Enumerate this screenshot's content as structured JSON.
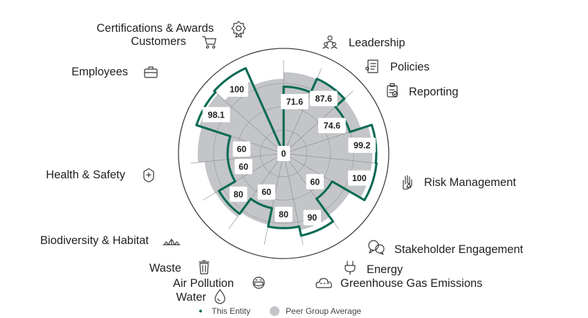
{
  "chart_data": {
    "type": "radar",
    "categories": [
      "Leadership",
      "Policies",
      "Reporting",
      "Risk Management",
      "Stakeholder Engagement",
      "Energy",
      "Greenhouse Gas Emissions",
      "Water",
      "Air Pollution",
      "Waste",
      "Biodiversity & Habitat",
      "Health & Safety",
      "Employees",
      "Customers",
      "Certifications & Awards"
    ],
    "value_labels": [
      "71.6",
      "87.6",
      "74.6",
      "99.2",
      "100",
      "60",
      "90",
      "80",
      "60",
      "80",
      "60",
      "60",
      "98.1",
      "100",
      "0"
    ],
    "series": [
      {
        "name": "This Entity",
        "values": [
          71.6,
          87.6,
          74.6,
          99.2,
          100,
          60,
          90,
          80,
          60,
          80,
          60,
          60,
          98.1,
          100,
          0
        ],
        "color": "#0b6b55"
      },
      {
        "name": "Peer Group Average",
        "values": [
          87,
          87,
          87,
          95,
          95,
          82,
          84,
          80,
          78,
          84,
          85,
          92,
          95,
          85,
          80
        ],
        "color": "#c3c5c8"
      }
    ],
    "rlim": [
      0,
      100
    ],
    "grid": true,
    "legend_position": "bottom",
    "icons": [
      "leadership-icon",
      "policies-icon",
      "reporting-icon",
      "risk-management-icon",
      "stakeholder-engagement-icon",
      "energy-icon",
      "greenhouse-gas-emissions-icon",
      "water-icon",
      "air-pollution-icon",
      "waste-icon",
      "biodiversity-habitat-icon",
      "health-safety-icon",
      "employees-icon",
      "customers-icon",
      "certifications-awards-icon"
    ]
  },
  "legend": {
    "entity_label": "This Entity",
    "peer_label": "Peer Group Average"
  }
}
